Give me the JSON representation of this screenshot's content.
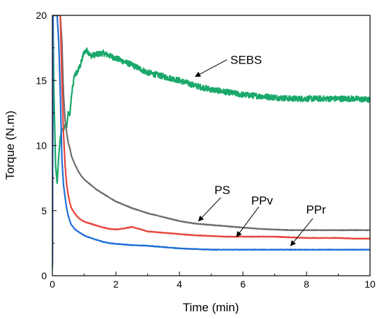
{
  "chart_data": {
    "type": "line",
    "title": "",
    "xlabel": "Time (min)",
    "ylabel": "Torque (N.m)",
    "xlim": [
      0,
      10
    ],
    "ylim": [
      0,
      20
    ],
    "xticks": [
      "0",
      "2",
      "4",
      "6",
      "8",
      "10"
    ],
    "yticks": [
      "0",
      "5",
      "10",
      "15",
      "20"
    ],
    "grid": false,
    "legend": "none",
    "series": [
      {
        "name": "SEBS",
        "color": "#1aa86a",
        "noise": 0.22,
        "x": [
          0,
          0.02,
          0.05,
          0.1,
          0.15,
          0.2,
          0.25,
          0.3,
          0.35,
          0.4,
          0.45,
          0.5,
          0.55,
          0.6,
          0.7,
          0.8,
          0.9,
          1.0,
          1.1,
          1.2,
          1.4,
          1.6,
          1.8,
          2.0,
          2.5,
          3.0,
          3.5,
          4.0,
          4.5,
          5.0,
          5.5,
          6.0,
          6.5,
          7.0,
          7.5,
          8.0,
          8.5,
          9.0,
          9.5,
          10.0
        ],
        "y": [
          0.5,
          20,
          14,
          8.5,
          7.1,
          9.2,
          10.6,
          11.3,
          11.1,
          11.6,
          11.4,
          12.6,
          12.3,
          13.8,
          15.4,
          15.7,
          16.3,
          17.2,
          17.3,
          16.9,
          17.0,
          17.1,
          16.9,
          16.7,
          16.2,
          15.6,
          15.3,
          15.0,
          14.6,
          14.3,
          14.1,
          13.9,
          13.8,
          13.7,
          13.6,
          13.6,
          13.6,
          13.6,
          13.6,
          13.5
        ]
      },
      {
        "name": "PS",
        "color": "#6e6e6e",
        "noise": 0.02,
        "x": [
          0,
          0.02,
          0.05,
          0.1,
          0.15,
          0.2,
          0.25,
          0.3,
          0.35,
          0.4,
          0.45,
          0.5,
          0.55,
          0.6,
          0.7,
          0.8,
          0.9,
          1.0,
          1.2,
          1.4,
          1.6,
          1.8,
          2.0,
          2.5,
          3.0,
          3.5,
          4.0,
          4.5,
          5.0,
          5.5,
          6.0,
          6.5,
          7.0,
          7.5,
          8.0,
          8.5,
          9.0,
          9.5,
          10.0
        ],
        "y": [
          1.0,
          20,
          20,
          20,
          20,
          20,
          20,
          18,
          14,
          12,
          11,
          10.2,
          9.8,
          9.2,
          8.6,
          8.1,
          7.7,
          7.4,
          7.0,
          6.6,
          6.3,
          6.0,
          5.7,
          5.2,
          4.8,
          4.5,
          4.2,
          4.0,
          3.9,
          3.8,
          3.7,
          3.6,
          3.55,
          3.5,
          3.5,
          3.5,
          3.5,
          3.5,
          3.5
        ]
      },
      {
        "name": "PPv",
        "color": "#e8453c",
        "noise": 0.02,
        "x": [
          0,
          0.02,
          0.05,
          0.1,
          0.15,
          0.2,
          0.25,
          0.3,
          0.35,
          0.4,
          0.45,
          0.5,
          0.55,
          0.6,
          0.7,
          0.8,
          0.9,
          1.0,
          1.2,
          1.4,
          1.6,
          1.8,
          2.0,
          2.2,
          2.5,
          2.8,
          3.0,
          3.5,
          4.0,
          4.5,
          5.0,
          5.5,
          6.0,
          6.5,
          7.0,
          7.5,
          8.0,
          8.5,
          9.0,
          9.5,
          10.0
        ],
        "y": [
          0.8,
          20,
          20,
          20,
          20,
          20,
          20,
          15,
          11,
          8.5,
          7.0,
          6.2,
          5.6,
          5.2,
          4.8,
          4.5,
          4.3,
          4.15,
          4.0,
          3.85,
          3.7,
          3.6,
          3.55,
          3.6,
          3.75,
          3.55,
          3.4,
          3.3,
          3.2,
          3.1,
          3.05,
          3.0,
          3.0,
          3.0,
          3.0,
          2.95,
          2.9,
          2.9,
          2.9,
          2.85,
          2.85
        ]
      },
      {
        "name": "PPr",
        "color": "#1f6fd6",
        "noise": 0.02,
        "x": [
          0,
          0.02,
          0.05,
          0.1,
          0.15,
          0.2,
          0.25,
          0.3,
          0.35,
          0.4,
          0.45,
          0.5,
          0.55,
          0.6,
          0.7,
          0.8,
          0.9,
          1.0,
          1.2,
          1.4,
          1.6,
          1.8,
          2.0,
          2.5,
          3.0,
          3.5,
          4.0,
          4.5,
          5.0,
          5.5,
          6.0,
          6.5,
          7.0,
          7.5,
          8.0,
          8.5,
          9.0,
          9.5,
          10.0
        ],
        "y": [
          0.8,
          20,
          20,
          20,
          20,
          18,
          14,
          9,
          7.0,
          6.0,
          5.2,
          4.6,
          4.2,
          3.9,
          3.6,
          3.4,
          3.25,
          3.1,
          2.9,
          2.75,
          2.6,
          2.5,
          2.45,
          2.35,
          2.3,
          2.2,
          2.1,
          2.05,
          2.0,
          2.0,
          2.0,
          2.0,
          2.0,
          2.0,
          2.0,
          2.0,
          2.0,
          2.0,
          2.0
        ]
      }
    ],
    "annotations": [
      {
        "text": "SEBS",
        "at": [
          6.1,
          16.6
        ],
        "arrow_from": [
          5.5,
          16.6
        ],
        "arrow_to": [
          4.5,
          15.3
        ]
      },
      {
        "text": "PS",
        "at": [
          5.35,
          6.6
        ],
        "arrow_from": [
          5.3,
          6.0
        ],
        "arrow_to": [
          4.6,
          4.2
        ]
      },
      {
        "text": "PPv",
        "at": [
          6.6,
          5.8
        ],
        "arrow_from": [
          6.5,
          5.3
        ],
        "arrow_to": [
          5.8,
          3.0
        ]
      },
      {
        "text": "PPr",
        "at": [
          8.3,
          5.1
        ],
        "arrow_from": [
          8.2,
          4.4
        ],
        "arrow_to": [
          7.5,
          2.3
        ]
      }
    ]
  }
}
